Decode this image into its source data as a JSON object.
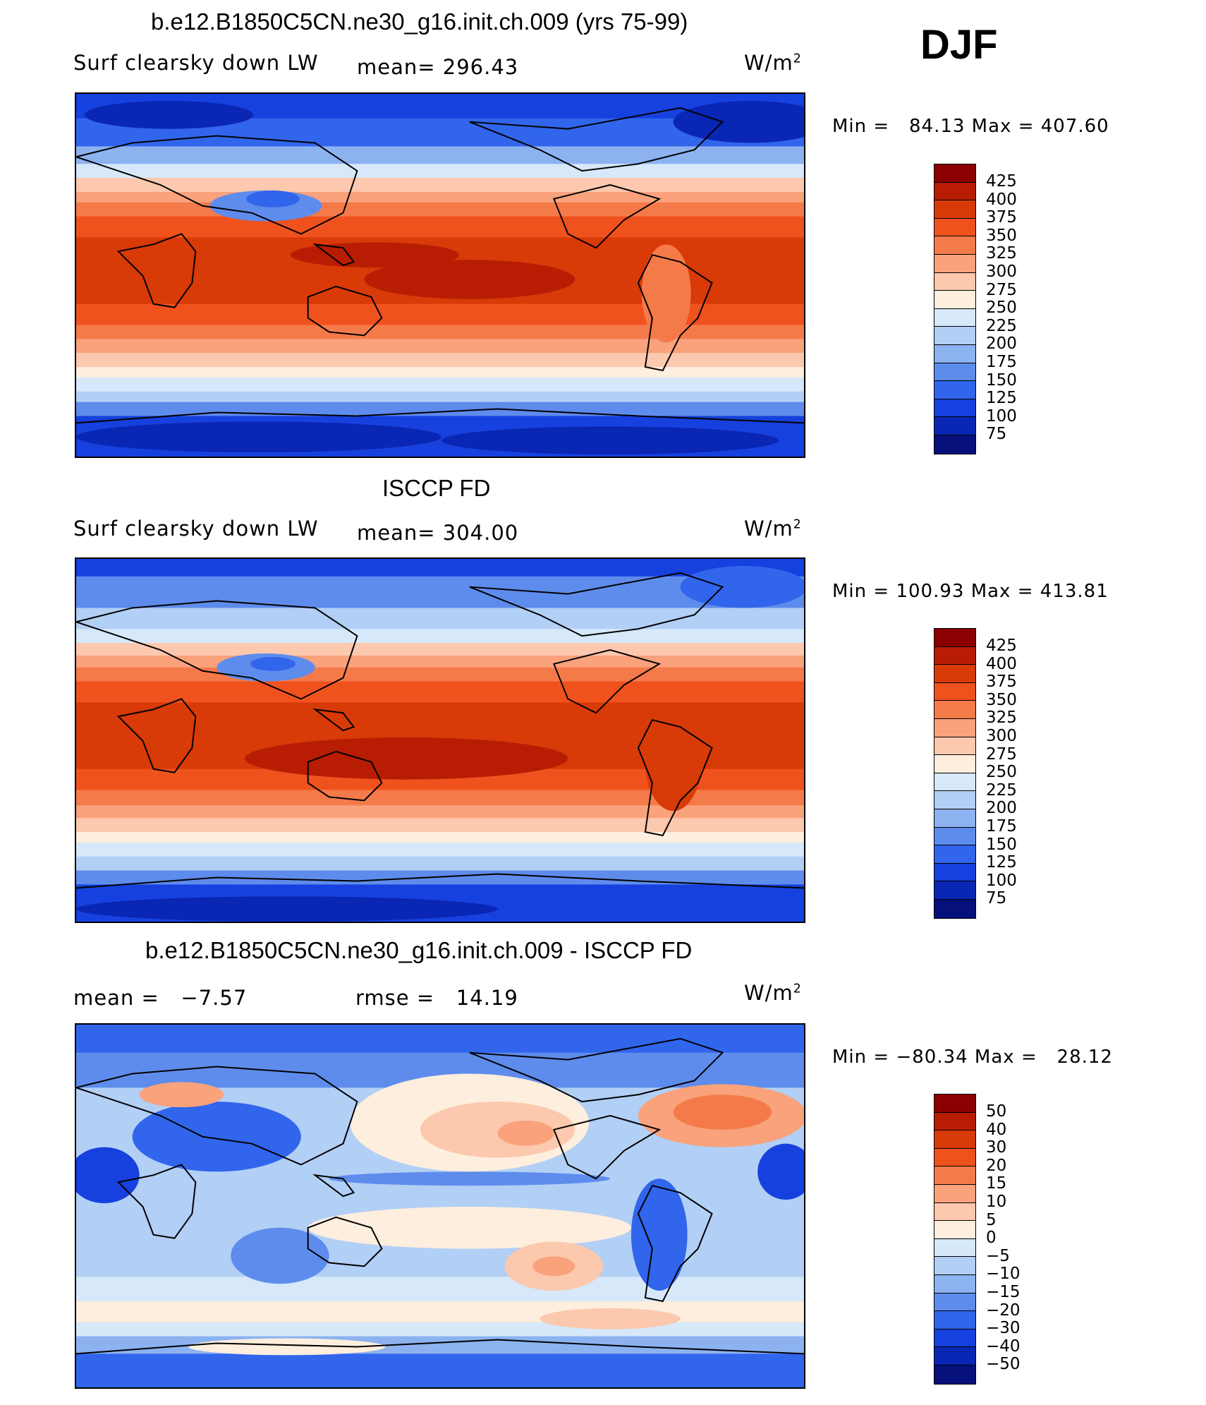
{
  "season": "DJF",
  "unit": "W/m",
  "unit_sup": "2",
  "panels": [
    {
      "title": "b.e12.B1850C5CN.ne30_g16.init.ch.009 (yrs 75-99)",
      "variable": "Surf clearsky down LW",
      "stat_label": "mean=",
      "stat_value": "296.43",
      "minmax": "Min =   84.13 Max = 407.60",
      "colorbar_labels": [
        "425",
        "400",
        "375",
        "350",
        "325",
        "300",
        "275",
        "250",
        "225",
        "200",
        "175",
        "150",
        "125",
        "100",
        "75"
      ],
      "colorbar_colors": [
        "#8b0000",
        "#b81d04",
        "#d83a08",
        "#f0521e",
        "#f57a4a",
        "#f9a27c",
        "#fcc8ae",
        "#fdeedd",
        "#d6e8f9",
        "#b2cff5",
        "#8cb2f0",
        "#5e8cec",
        "#3165ec",
        "#1641de",
        "#0a26b4",
        "#05107a"
      ]
    },
    {
      "title": "ISCCP FD",
      "variable": "Surf clearsky down LW",
      "stat_label": "mean=",
      "stat_value": "304.00",
      "minmax": "Min = 100.93 Max = 413.81",
      "colorbar_labels": [
        "425",
        "400",
        "375",
        "350",
        "325",
        "300",
        "275",
        "250",
        "225",
        "200",
        "175",
        "150",
        "125",
        "100",
        "75"
      ],
      "colorbar_colors": [
        "#8b0000",
        "#b81d04",
        "#d83a08",
        "#f0521e",
        "#f57a4a",
        "#f9a27c",
        "#fcc8ae",
        "#fdeedd",
        "#d6e8f9",
        "#b2cff5",
        "#8cb2f0",
        "#5e8cec",
        "#3165ec",
        "#1641de",
        "#0a26b4",
        "#05107a"
      ]
    },
    {
      "title": "b.e12.B1850C5CN.ne30_g16.init.ch.009 - ISCCP FD",
      "mean_label": "mean =",
      "mean_value": "−7.57",
      "rmse_label": "rmse =",
      "rmse_value": "14.19",
      "minmax": "Min = −80.34 Max =   28.12",
      "colorbar_labels": [
        "50",
        "40",
        "30",
        "20",
        "15",
        "10",
        "5",
        "0",
        "−5",
        "−10",
        "−15",
        "−20",
        "−30",
        "−40",
        "−50"
      ],
      "colorbar_colors": [
        "#8b0000",
        "#b81d04",
        "#d83a08",
        "#f0521e",
        "#f57a4a",
        "#f9a27c",
        "#fcc8ae",
        "#fdeedd",
        "#d6e8f9",
        "#b2cff5",
        "#8cb2f0",
        "#5e8cec",
        "#3165ec",
        "#1641de",
        "#0a26b4",
        "#05107a"
      ]
    }
  ]
}
